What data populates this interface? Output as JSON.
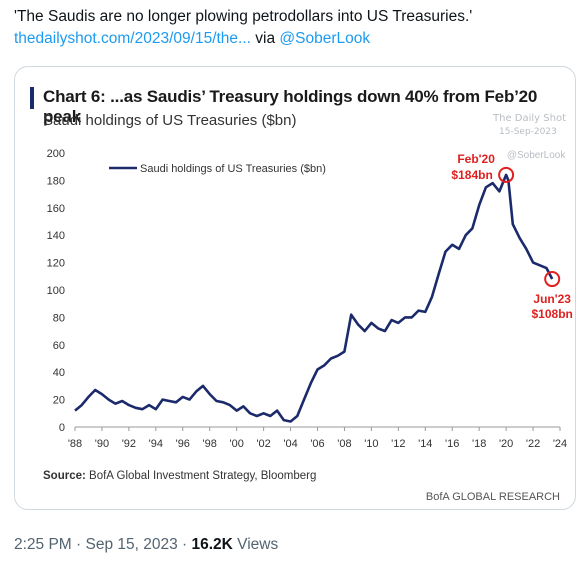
{
  "tweet": {
    "text": "'The Saudis are no longer plowing petrodollars into US Treasuries.'",
    "link": "thedailyshot.com/2023/09/15/the...",
    "via": " via ",
    "handle": "@SoberLook"
  },
  "chart": {
    "title": "Chart 6: ...as Saudis’ Treasury holdings down 40% from Feb’20 peak",
    "subtitle": "Saudi holdings of US Treasuries ($bn)",
    "watermark_line1": "The Daily Shot",
    "watermark_line2": "15-Sep-2023",
    "watermark_handle": "@SoberLook",
    "source_label": "Source:",
    "source_text": " BofA Global Investment Strategy, Bloomberg",
    "footer": "BofA GLOBAL RESEARCH",
    "annotations": {
      "peak_label": "Feb'20",
      "peak_value": "$184bn",
      "low_label": "Jun'23",
      "low_value": "$108bn"
    },
    "colors": {
      "line": "#1b2a6b",
      "annotation": "#e02020",
      "axis": "#999999"
    }
  },
  "chart_data": {
    "type": "line",
    "title": "Chart 6: ...as Saudis’ Treasury holdings down 40% from Feb’20 peak",
    "subtitle": "Saudi holdings of US Treasuries ($bn)",
    "xlabel": "",
    "ylabel": "",
    "ylim": [
      0,
      200
    ],
    "xlim": [
      1988,
      2024
    ],
    "y_ticks": [
      0,
      20,
      40,
      60,
      80,
      100,
      120,
      140,
      160,
      180,
      200
    ],
    "x_ticks": [
      "'88",
      "'90",
      "'92",
      "'94",
      "'96",
      "'98",
      "'00",
      "'02",
      "'04",
      "'06",
      "'08",
      "'10",
      "'12",
      "'14",
      "'16",
      "'18",
      "'20",
      "'22",
      "'24"
    ],
    "legend": "top-left",
    "series": [
      {
        "name": "Saudi holdings of US Treasuries ($bn)",
        "x": [
          1988.0,
          1988.5,
          1989.0,
          1989.5,
          1990.0,
          1990.5,
          1991.0,
          1991.5,
          1992.0,
          1992.5,
          1993.0,
          1993.5,
          1994.0,
          1994.5,
          1995.0,
          1995.5,
          1996.0,
          1996.5,
          1997.0,
          1997.5,
          1998.0,
          1998.5,
          1999.0,
          1999.5,
          2000.0,
          2000.5,
          2001.0,
          2001.5,
          2002.0,
          2002.5,
          2003.0,
          2003.5,
          2004.0,
          2004.5,
          2005.0,
          2005.5,
          2006.0,
          2006.5,
          2007.0,
          2007.5,
          2008.0,
          2008.5,
          2009.0,
          2009.5,
          2010.0,
          2010.5,
          2011.0,
          2011.5,
          2012.0,
          2012.5,
          2013.0,
          2013.5,
          2014.0,
          2014.5,
          2015.0,
          2015.5,
          2016.0,
          2016.5,
          2017.0,
          2017.5,
          2018.0,
          2018.5,
          2019.0,
          2019.5,
          2020.0,
          2020.17,
          2020.5,
          2021.0,
          2021.5,
          2022.0,
          2022.5,
          2023.0,
          2023.42
        ],
        "values": [
          12,
          16,
          22,
          27,
          24,
          20,
          17,
          19,
          16,
          14,
          13,
          16,
          13,
          20,
          19,
          18,
          22,
          20,
          26,
          30,
          24,
          19,
          18,
          16,
          12,
          15,
          10,
          8,
          10,
          8,
          12,
          5,
          4,
          8,
          20,
          32,
          42,
          45,
          50,
          52,
          55,
          82,
          75,
          70,
          76,
          72,
          70,
          78,
          76,
          80,
          80,
          85,
          84,
          95,
          112,
          128,
          133,
          130,
          140,
          145,
          162,
          175,
          178,
          172,
          184,
          180,
          148,
          138,
          130,
          120,
          118,
          116,
          108
        ]
      }
    ]
  }
}
